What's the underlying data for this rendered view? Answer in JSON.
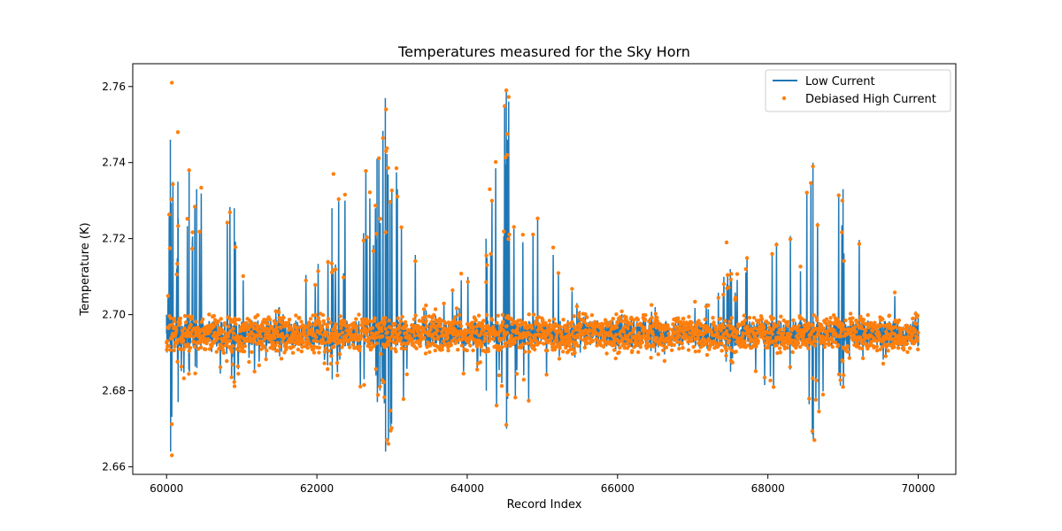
{
  "chart_data": {
    "type": "line",
    "title": "Temperatures measured for the Sky Horn",
    "xlabel": "Record Index",
    "ylabel": "Temperature (K)",
    "xlim": [
      59550,
      70500
    ],
    "ylim": [
      2.658,
      2.766
    ],
    "x_ticks": [
      60000,
      62000,
      64000,
      66000,
      68000,
      70000
    ],
    "x_tick_labels": [
      "60000",
      "62000",
      "64000",
      "66000",
      "68000",
      "70000"
    ],
    "y_ticks": [
      2.66,
      2.68,
      2.7,
      2.72,
      2.74,
      2.76
    ],
    "y_tick_labels": [
      "2.66",
      "2.68",
      "2.70",
      "2.72",
      "2.74",
      "2.76"
    ],
    "grid": false,
    "legend_position": "top-right",
    "baseline_temperature": 2.695,
    "series": [
      {
        "name": "Low Current",
        "style": "line",
        "color": "#1f77b4",
        "x_range": [
          60000,
          70000
        ],
        "envelope": [
          {
            "x": 60000,
            "min": 2.69,
            "max": 2.7
          },
          {
            "x": 60050,
            "min": 2.664,
            "max": 2.746
          },
          {
            "x": 60150,
            "min": 2.677,
            "max": 2.735
          },
          {
            "x": 60300,
            "min": 2.685,
            "max": 2.738
          },
          {
            "x": 60400,
            "min": 2.686,
            "max": 2.733
          },
          {
            "x": 60900,
            "min": 2.682,
            "max": 2.728
          },
          {
            "x": 61500,
            "min": 2.689,
            "max": 2.702
          },
          {
            "x": 62200,
            "min": 2.683,
            "max": 2.728
          },
          {
            "x": 62800,
            "min": 2.677,
            "max": 2.741
          },
          {
            "x": 62910,
            "min": 2.664,
            "max": 2.757
          },
          {
            "x": 63500,
            "min": 2.692,
            "max": 2.698
          },
          {
            "x": 64250,
            "min": 2.68,
            "max": 2.72
          },
          {
            "x": 64520,
            "min": 2.67,
            "max": 2.759
          },
          {
            "x": 65500,
            "min": 2.69,
            "max": 2.701
          },
          {
            "x": 66500,
            "min": 2.69,
            "max": 2.702
          },
          {
            "x": 67500,
            "min": 2.685,
            "max": 2.712
          },
          {
            "x": 68600,
            "min": 2.667,
            "max": 2.74
          },
          {
            "x": 69000,
            "min": 2.681,
            "max": 2.733
          },
          {
            "x": 70000,
            "min": 2.692,
            "max": 2.7
          }
        ]
      },
      {
        "name": "Debiased High Current",
        "style": "scatter",
        "color": "#ff7f0e",
        "x_range": [
          60000,
          70000
        ],
        "notable_points": [
          {
            "x": 60070,
            "y": 2.761
          },
          {
            "x": 60150,
            "y": 2.748
          },
          {
            "x": 60070,
            "y": 2.663
          },
          {
            "x": 60300,
            "y": 2.738
          },
          {
            "x": 62220,
            "y": 2.737
          },
          {
            "x": 62920,
            "y": 2.754
          },
          {
            "x": 62920,
            "y": 2.743
          },
          {
            "x": 62930,
            "y": 2.667
          },
          {
            "x": 64300,
            "y": 2.733
          },
          {
            "x": 64520,
            "y": 2.759
          },
          {
            "x": 64530,
            "y": 2.742
          },
          {
            "x": 64520,
            "y": 2.671
          },
          {
            "x": 67450,
            "y": 2.719
          },
          {
            "x": 68600,
            "y": 2.739
          },
          {
            "x": 68620,
            "y": 2.667
          },
          {
            "x": 68990,
            "y": 2.73
          },
          {
            "x": 69000,
            "y": 2.681
          }
        ]
      }
    ]
  }
}
